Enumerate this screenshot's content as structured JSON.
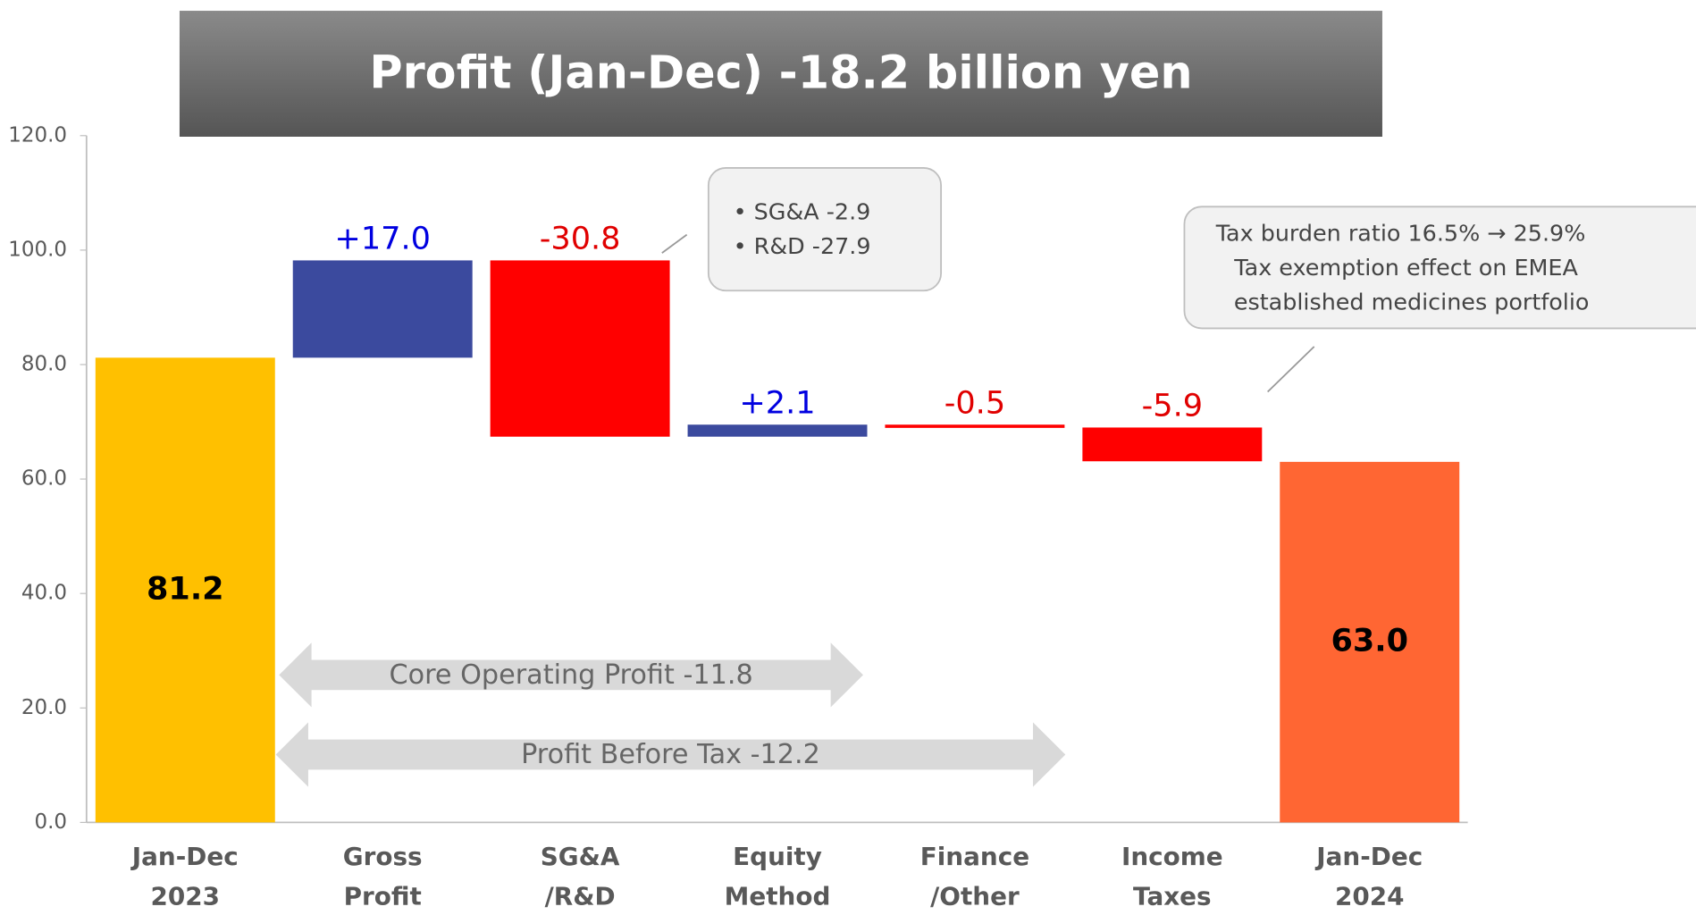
{
  "chart_data": {
    "type": "waterfall",
    "title": "Profit (Jan-Dec) -18.2 billion yen",
    "categories": [
      [
        "Jan-Dec",
        "2023"
      ],
      [
        "Gross",
        "Profit"
      ],
      [
        "SG&A",
        "/R&D"
      ],
      [
        "Equity",
        "Method"
      ],
      [
        "Finance",
        "/Other"
      ],
      [
        "Income",
        "Taxes"
      ],
      [
        "Jan-Dec",
        "2024"
      ]
    ],
    "values": [
      81.2,
      17.0,
      -30.8,
      2.1,
      -0.5,
      -5.9,
      63.0
    ],
    "value_labels": [
      "81.2",
      "+17.0",
      "-30.8",
      "+2.1",
      "-0.5",
      "-5.9",
      "63.0"
    ],
    "colors": [
      "#FFC000",
      "#3B4A9E",
      "#FF0000",
      "#3B4A9E",
      "#FF0000",
      "#FF0000",
      "#FF6633"
    ],
    "positive_label_color": "#0000E0",
    "negative_label_color": "#E00000",
    "ylim": [
      0,
      120
    ],
    "yticks": [
      {
        "value": 0,
        "label": "0.0"
      },
      {
        "value": 20,
        "label": "20.0"
      },
      {
        "value": 40,
        "label": "40.0"
      },
      {
        "value": 60,
        "label": "60.0"
      },
      {
        "value": 80,
        "label": "80.0"
      },
      {
        "value": 100,
        "label": "100.0"
      },
      {
        "value": 120,
        "label": "120.0"
      }
    ],
    "annotations": {
      "sga_rd": [
        "SG&A -2.9",
        "R&D -27.9"
      ],
      "tax": [
        "Tax burden ratio 16.5% → 25.9%",
        "Tax exemption effect on EMEA",
        "established medicines portfolio"
      ],
      "core_operating_profit": "Core Operating Profit -11.8",
      "profit_before_tax": "Profit Before Tax -12.2"
    }
  }
}
